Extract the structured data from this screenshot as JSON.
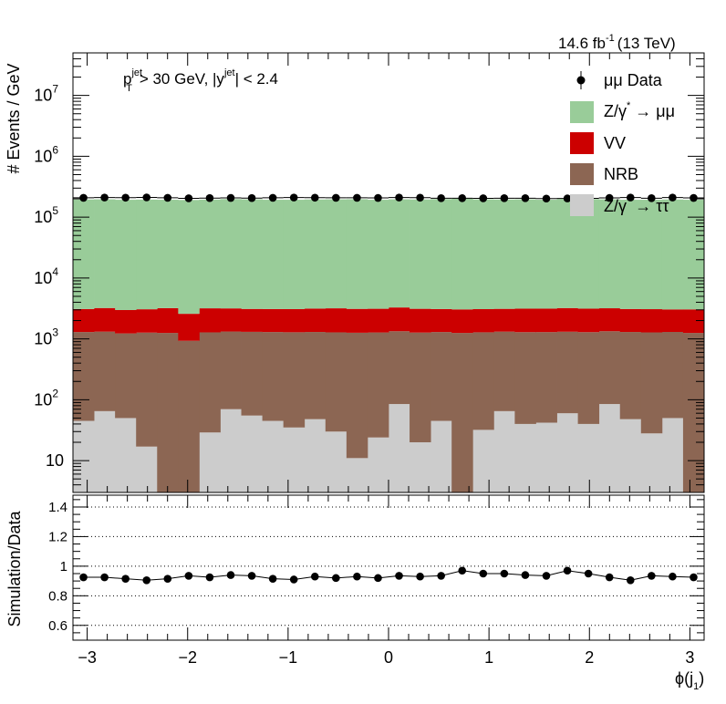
{
  "header": {
    "lumi": "14.6 fb",
    "lumi_sup": "-1",
    "energy": "(13 TeV)"
  },
  "cuts": {
    "p": "p",
    "p_sup": "jet",
    "p_sub": "T",
    "p_rest": "> 30 GeV,  |y",
    "y_sup": "jet",
    "y_rest": "| < 2.4"
  },
  "legend": {
    "data": "μμ Data",
    "dy_mumu_a": "Z/γ",
    "dy_mumu_b": "→ μμ",
    "vv": "VV",
    "nrb": "NRB",
    "dy_tautau_a": "Z/γ",
    "dy_tautau_b": "→ ττ",
    "star": "*"
  },
  "colors": {
    "dy_mumu": "#99cc99",
    "vv": "#cc0000",
    "nrb": "#8c6653",
    "dy_tautau": "#cccccc",
    "data": "#000000"
  },
  "chart_data": [
    {
      "type": "bar",
      "stacked": true,
      "log_y": true,
      "ylabel": "# Events / GeV",
      "xlim": [
        -3.1416,
        3.1416
      ],
      "ylim": [
        3,
        50000000
      ],
      "y_ticks": [
        "10",
        "10",
        "10",
        "10",
        "10",
        "10",
        "10"
      ],
      "y_tick_exponents": [
        "",
        "2",
        "3",
        "4",
        "5",
        "6",
        "7"
      ],
      "nbins": 30,
      "series": [
        {
          "name": "Z/γ* → ττ",
          "key": "dy_tautau",
          "values": [
            45,
            65,
            50,
            17,
            2,
            2,
            29,
            70,
            55,
            45,
            35,
            48,
            30,
            11,
            24,
            85,
            20,
            45,
            2,
            32,
            65,
            40,
            42,
            60,
            40,
            85,
            48,
            28,
            50,
            2
          ]
        },
        {
          "name": "NRB",
          "key": "nrb",
          "values": [
            1250,
            1250,
            1180,
            1250,
            1250,
            930,
            1250,
            1250,
            1250,
            1250,
            1250,
            1250,
            1250,
            1250,
            1250,
            1250,
            1250,
            1250,
            1250,
            1250,
            1250,
            1250,
            1250,
            1250,
            1250,
            1250,
            1250,
            1250,
            1250,
            1250
          ]
        },
        {
          "name": "VV",
          "key": "vv",
          "values": [
            1800,
            1900,
            1750,
            1800,
            1950,
            1650,
            1900,
            1850,
            1800,
            1800,
            1800,
            1850,
            1900,
            1850,
            1850,
            1950,
            1850,
            1800,
            1800,
            1800,
            1800,
            1850,
            1850,
            1900,
            1850,
            1850,
            1800,
            1800,
            1750,
            1800
          ]
        },
        {
          "name": "Z/γ* → μμ",
          "key": "dy_mumu",
          "values": [
            192000,
            193000,
            190000,
            191000,
            190000,
            189000,
            191000,
            195000,
            193000,
            190000,
            190000,
            192000,
            193000,
            194000,
            190000,
            193000,
            192000,
            195000,
            200000,
            193000,
            192000,
            193000,
            190000,
            196000,
            195000,
            193000,
            190000,
            190000,
            192000,
            190000
          ]
        }
      ],
      "data": {
        "name": "μμ Data",
        "values": [
          208000,
          210000,
          209000,
          211000,
          208000,
          204000,
          206000,
          207000,
          206000,
          208000,
          210000,
          209000,
          208000,
          208000,
          207000,
          210000,
          209000,
          205000,
          205000,
          204000,
          205000,
          205000,
          202000,
          203000,
          204000,
          207000,
          210000,
          205000,
          210000,
          207000
        ]
      },
      "legend_position": "top-right"
    },
    {
      "type": "scatter",
      "ylabel": "Simulation/Data",
      "xlabel": "ϕ(j",
      "xlabel_sub": "1",
      "xlabel_close": ")",
      "xlim": [
        -3.1416,
        3.1416
      ],
      "ylim": [
        0.5,
        1.48
      ],
      "x_ticks": [
        -3,
        -2,
        -1,
        0,
        1,
        2,
        3
      ],
      "x_tick_labels": [
        "−3",
        "−2",
        "−1",
        "0",
        "1",
        "2",
        "3"
      ],
      "y_ticks": [
        0.6,
        0.8,
        1.0,
        1.2,
        1.4
      ],
      "y_tick_labels": [
        "0.6",
        "0.8",
        "1",
        "1.2",
        "1.4"
      ],
      "gridlines_y": [
        0.6,
        0.8,
        1.0,
        1.2,
        1.4
      ],
      "values": [
        0.925,
        0.925,
        0.915,
        0.905,
        0.915,
        0.935,
        0.925,
        0.94,
        0.935,
        0.915,
        0.91,
        0.93,
        0.92,
        0.93,
        0.92,
        0.935,
        0.93,
        0.935,
        0.97,
        0.95,
        0.95,
        0.94,
        0.935,
        0.97,
        0.95,
        0.925,
        0.905,
        0.935,
        0.93,
        0.925
      ]
    }
  ]
}
